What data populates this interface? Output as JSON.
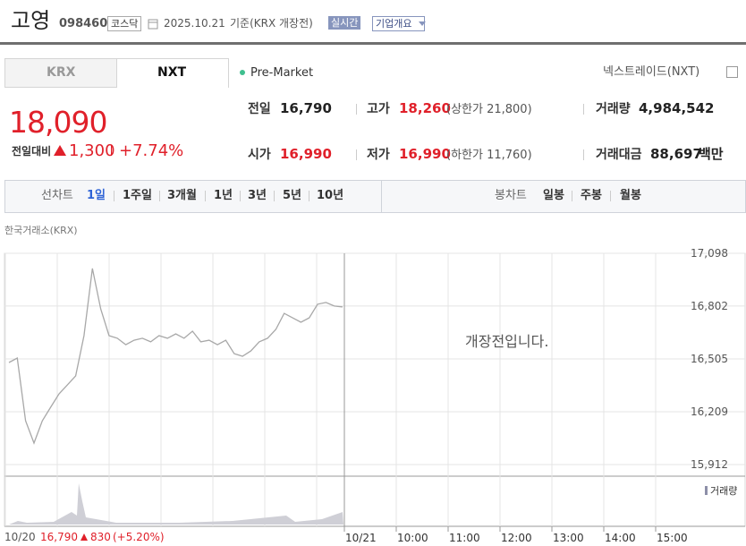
{
  "header": {
    "name": "고영",
    "code": "098460",
    "market": "코스닥",
    "date": "2025.10.21",
    "basis": "기준(KRX 개장전)",
    "realtime": "실시간",
    "company": "기업개요"
  },
  "tabs": [
    "KRX",
    "NXT"
  ],
  "session": "Pre-Market",
  "exchange": "넥스트레이드(NXT)",
  "price": {
    "current": "18,090",
    "change_label": "전일대비",
    "change": "1,300",
    "rate": "+7.74%"
  },
  "stats": [
    {
      "label": "전일",
      "value": "16,790"
    },
    {
      "label": "고가",
      "value": "18,260",
      "note": "(상한가 21,800)"
    },
    {
      "label": "거래량",
      "value": "4,984,542"
    },
    {
      "label": "시가",
      "value": "16,990"
    },
    {
      "label": "저가",
      "value": "16,990",
      "note": "(하한가 11,760)"
    },
    {
      "label": "거래대금",
      "value": "88,697",
      "unit": "백만"
    }
  ],
  "periods": {
    "line_label": "선차트",
    "line": [
      "1일",
      "1주일",
      "3개월",
      "1년",
      "3년",
      "5년",
      "10년"
    ],
    "candle_label": "봉차트",
    "candle": [
      "일봉",
      "주봉",
      "월봉"
    ]
  },
  "chart_data": {
    "type": "line",
    "source": "한국거래소(KRX)",
    "notice": "개장전입니다.",
    "color": "#a8a8a8",
    "values": [
      16485,
      16510,
      16158,
      16033,
      16158,
      16234,
      16309,
      16359,
      16410,
      16636,
      17013,
      16786,
      16636,
      16621,
      16585,
      16610,
      16621,
      16601,
      16636,
      16621,
      16646,
      16621,
      16661,
      16601,
      16610,
      16585,
      16610,
      16535,
      16520,
      16550,
      16601,
      16621,
      16671,
      16761,
      16736,
      16711,
      16736,
      16812,
      16822,
      16802,
      16797
    ],
    "ylim": [
      15847,
      17098
    ],
    "yticks": [
      {
        "value": 17098,
        "label": "17,098"
      },
      {
        "value": 16802,
        "label": "16,802"
      },
      {
        "value": 16505,
        "label": "16,505"
      },
      {
        "value": 16209,
        "label": "16,209"
      },
      {
        "value": 15912,
        "label": "15,912"
      }
    ],
    "xticks": [
      "10/21",
      "10:00",
      "11:00",
      "12:00",
      "13:00",
      "14:00",
      "15:00"
    ],
    "grid": true,
    "volume_label": "거래량",
    "prev": {
      "date": "10/20",
      "close": "16,790",
      "change": "830",
      "rate": "(+5.20%)"
    }
  }
}
